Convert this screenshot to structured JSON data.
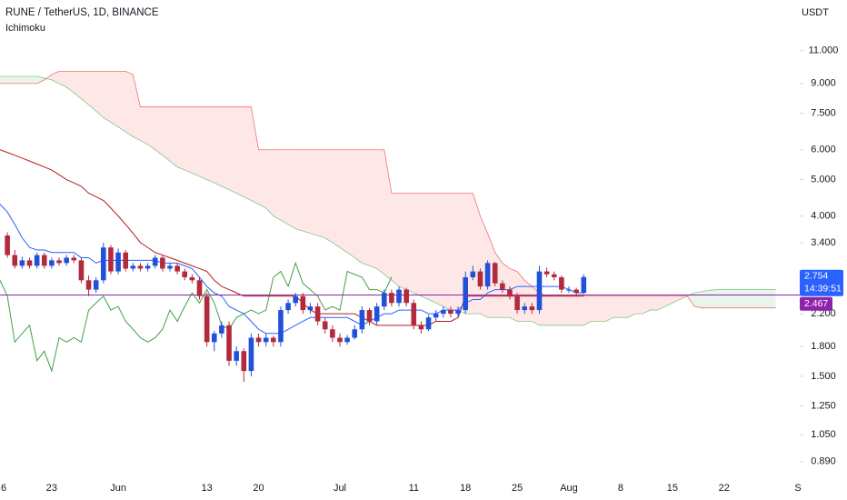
{
  "chart_data": {
    "type": "candlestick",
    "title": "RUNE / TetherUS, 1D, BINANCE",
    "indicator": "Ichimoku",
    "y_axis_label": "USDT",
    "log_scale": true,
    "grid": false,
    "ylim": [
      0.8,
      15
    ],
    "yticks": [
      {
        "value": 11,
        "label": "11.000"
      },
      {
        "value": 9,
        "label": "9.000"
      },
      {
        "value": 7.5,
        "label": "7.500"
      },
      {
        "value": 6,
        "label": "6.000"
      },
      {
        "value": 5,
        "label": "5.000"
      },
      {
        "value": 4,
        "label": "4.000"
      },
      {
        "value": 3.4,
        "label": "3.400"
      },
      {
        "value": 2.2,
        "label": "2.200"
      },
      {
        "value": 1.8,
        "label": "1.800"
      },
      {
        "value": 1.5,
        "label": "1.500"
      },
      {
        "value": 1.25,
        "label": "1.250"
      },
      {
        "value": 1.05,
        "label": "1.050"
      },
      {
        "value": 0.89,
        "label": "0.890"
      }
    ],
    "categories": [
      "6",
      null,
      null,
      null,
      null,
      null,
      null,
      "23",
      null,
      null,
      null,
      null,
      null,
      null,
      null,
      null,
      "Jun",
      null,
      null,
      null,
      null,
      null,
      null,
      null,
      null,
      null,
      null,
      null,
      "13",
      null,
      null,
      null,
      null,
      null,
      null,
      "20",
      null,
      null,
      null,
      null,
      null,
      null,
      null,
      null,
      null,
      null,
      "Jul",
      null,
      null,
      null,
      null,
      null,
      null,
      null,
      null,
      null,
      "11",
      null,
      null,
      null,
      null,
      null,
      null,
      "18",
      null,
      null,
      null,
      null,
      null,
      null,
      "25",
      null,
      null,
      null,
      null,
      null,
      null,
      "Aug",
      null,
      null,
      null,
      null,
      null,
      null,
      "8",
      null,
      null,
      null,
      null,
      null,
      null,
      "15",
      null,
      null,
      null,
      null,
      null,
      null,
      "22",
      null,
      null,
      null,
      null,
      null,
      null,
      null,
      null,
      null,
      "S"
    ],
    "open": [
      null,
      3.55,
      3.15,
      2.95,
      3.05,
      2.95,
      3.15,
      2.95,
      3.05,
      3.0,
      3.1,
      3.05,
      2.7,
      2.55,
      2.7,
      3.3,
      2.85,
      3.2,
      2.9,
      2.95,
      2.9,
      2.95,
      3.1,
      2.9,
      2.95,
      2.85,
      2.75,
      2.7,
      2.45,
      1.85,
      1.95,
      2.05,
      1.65,
      1.75,
      1.55,
      1.9,
      1.85,
      1.9,
      1.85,
      2.25,
      2.35,
      2.45,
      2.25,
      2.3,
      2.1,
      2.0,
      1.9,
      1.85,
      1.9,
      2.0,
      2.25,
      2.1,
      2.3,
      2.5,
      2.35,
      2.55,
      2.35,
      2.05,
      2.0,
      2.15,
      2.2,
      2.25,
      2.2,
      2.25,
      2.75,
      2.85,
      2.6,
      3.0,
      2.65,
      2.55,
      2.45,
      2.25,
      2.3,
      2.25,
      2.85,
      2.8,
      2.75,
      2.55,
      2.55,
      2.5,
      null,
      null,
      null,
      null,
      null,
      null,
      null,
      null,
      null,
      null,
      null,
      null,
      null,
      null,
      null,
      null,
      null,
      null,
      null,
      null,
      null,
      null,
      null,
      null,
      null,
      null,
      null,
      null,
      null
    ],
    "high": [
      null,
      3.62,
      3.25,
      3.12,
      3.1,
      3.2,
      3.2,
      3.1,
      3.1,
      3.15,
      3.15,
      3.1,
      2.78,
      2.75,
      3.4,
      3.35,
      3.28,
      3.25,
      3.0,
      3.0,
      3.0,
      3.15,
      3.15,
      3.0,
      3.0,
      2.9,
      2.8,
      2.75,
      2.5,
      1.98,
      2.1,
      2.1,
      1.8,
      1.78,
      1.95,
      1.95,
      1.95,
      1.92,
      2.3,
      2.4,
      2.5,
      2.5,
      2.35,
      2.35,
      2.15,
      2.05,
      1.95,
      1.93,
      2.05,
      2.3,
      2.28,
      2.35,
      2.55,
      2.55,
      2.6,
      2.58,
      2.4,
      2.1,
      2.18,
      2.25,
      2.3,
      2.3,
      2.3,
      2.85,
      2.95,
      2.9,
      3.05,
      3.02,
      2.7,
      2.6,
      2.5,
      2.35,
      2.35,
      2.95,
      2.92,
      2.85,
      2.78,
      2.6,
      2.58,
      2.8,
      null,
      null,
      null,
      null,
      null,
      null,
      null,
      null,
      null,
      null,
      null,
      null,
      null,
      null,
      null,
      null,
      null,
      null,
      null,
      null,
      null,
      null,
      null,
      null,
      null,
      null,
      null,
      null,
      null
    ],
    "low": [
      null,
      3.1,
      2.9,
      2.9,
      2.9,
      2.9,
      2.9,
      2.9,
      2.95,
      2.95,
      3.0,
      2.65,
      2.45,
      2.5,
      2.65,
      2.8,
      2.8,
      2.85,
      2.85,
      2.85,
      2.85,
      2.9,
      2.85,
      2.85,
      2.8,
      2.7,
      2.65,
      2.4,
      1.8,
      1.75,
      1.9,
      1.6,
      1.6,
      1.45,
      1.5,
      1.8,
      1.8,
      1.8,
      1.8,
      2.2,
      2.3,
      2.2,
      2.2,
      2.05,
      1.95,
      1.85,
      1.8,
      1.82,
      1.88,
      1.95,
      2.05,
      2.05,
      2.25,
      2.3,
      2.3,
      2.3,
      2.0,
      1.95,
      1.98,
      2.1,
      2.15,
      2.15,
      2.15,
      2.2,
      2.7,
      2.55,
      2.55,
      2.6,
      2.5,
      2.4,
      2.2,
      2.2,
      2.2,
      2.2,
      2.75,
      2.7,
      2.5,
      2.5,
      2.45,
      2.48,
      null,
      null,
      null,
      null,
      null,
      null,
      null,
      null,
      null,
      null,
      null,
      null,
      null,
      null,
      null,
      null,
      null,
      null,
      null,
      null,
      null,
      null,
      null,
      null,
      null,
      null,
      null,
      null,
      null
    ],
    "close": [
      null,
      3.15,
      2.95,
      3.05,
      2.95,
      3.15,
      2.95,
      3.05,
      3.0,
      3.1,
      3.05,
      2.7,
      2.55,
      2.7,
      3.3,
      2.85,
      3.2,
      2.9,
      2.95,
      2.9,
      2.95,
      3.1,
      2.9,
      2.95,
      2.85,
      2.75,
      2.7,
      2.45,
      1.85,
      1.95,
      2.05,
      1.65,
      1.75,
      1.55,
      1.9,
      1.85,
      1.9,
      1.85,
      2.25,
      2.35,
      2.45,
      2.25,
      2.3,
      2.1,
      2.0,
      1.9,
      1.85,
      1.9,
      2.0,
      2.25,
      2.1,
      2.3,
      2.5,
      2.35,
      2.55,
      2.35,
      2.05,
      2.0,
      2.15,
      2.2,
      2.25,
      2.2,
      2.25,
      2.75,
      2.85,
      2.6,
      3.0,
      2.65,
      2.55,
      2.45,
      2.25,
      2.3,
      2.25,
      2.85,
      2.8,
      2.75,
      2.55,
      2.55,
      2.5,
      2.754,
      null,
      null,
      null,
      null,
      null,
      null,
      null,
      null,
      null,
      null,
      null,
      null,
      null,
      null,
      null,
      null,
      null,
      null,
      null,
      null,
      null,
      null,
      null,
      null,
      null,
      null,
      null,
      null,
      null
    ],
    "up_color": "#2151d9",
    "down_color": "#b22a3c",
    "ichimoku": {
      "conversion_line": {
        "color": "#2962ff",
        "values": [
          4.3,
          4.1,
          3.8,
          3.5,
          3.3,
          3.25,
          3.25,
          3.2,
          3.2,
          3.2,
          3.2,
          3.1,
          3.1,
          3.0,
          3.05,
          3.05,
          3.05,
          3.05,
          3.05,
          3.05,
          3.05,
          3.05,
          3.0,
          3.0,
          3.0,
          2.95,
          2.9,
          2.75,
          2.6,
          2.5,
          2.45,
          2.3,
          2.25,
          2.2,
          2.1,
          2.0,
          1.95,
          1.95,
          1.95,
          2.0,
          2.05,
          2.1,
          2.15,
          2.15,
          2.15,
          2.15,
          2.15,
          2.15,
          2.1,
          2.05,
          2.1,
          2.15,
          2.2,
          2.2,
          2.25,
          2.25,
          2.25,
          2.25,
          2.2,
          2.2,
          2.25,
          2.25,
          2.25,
          2.35,
          2.4,
          2.4,
          2.5,
          2.55,
          2.55,
          2.55,
          2.6,
          2.6,
          2.6,
          2.6,
          2.6,
          2.6,
          2.6,
          2.55,
          2.5,
          2.5,
          null,
          null,
          null,
          null,
          null,
          null,
          null,
          null,
          null,
          null,
          null,
          null,
          null,
          null,
          null,
          null,
          null,
          null,
          null,
          null,
          null,
          null,
          null,
          null,
          null,
          null,
          null,
          null,
          null
        ]
      },
      "base_line": {
        "color": "#b71c1c",
        "values": [
          6.0,
          5.9,
          5.8,
          5.7,
          5.6,
          5.5,
          5.4,
          5.3,
          5.15,
          5.0,
          4.9,
          4.8,
          4.6,
          4.5,
          4.4,
          4.2,
          4.0,
          3.8,
          3.6,
          3.4,
          3.3,
          3.2,
          3.15,
          3.1,
          3.05,
          3.0,
          2.95,
          2.9,
          2.85,
          2.7,
          2.6,
          2.55,
          2.5,
          2.45,
          2.45,
          2.45,
          2.45,
          2.45,
          2.45,
          2.45,
          2.45,
          2.35,
          2.25,
          2.2,
          2.2,
          2.2,
          2.2,
          2.2,
          2.2,
          2.15,
          2.1,
          2.05,
          2.05,
          2.05,
          2.05,
          2.05,
          2.05,
          2.05,
          2.05,
          2.1,
          2.1,
          2.1,
          2.15,
          2.45,
          2.45,
          2.45,
          2.45,
          2.45,
          2.45,
          2.45,
          2.45,
          2.45,
          2.45,
          2.45,
          2.45,
          2.45,
          2.45,
          2.45,
          2.45,
          2.45,
          null,
          null,
          null,
          null,
          null,
          null,
          null,
          null,
          null,
          null,
          null,
          null,
          null,
          null,
          null,
          null,
          null,
          null,
          null,
          null,
          null,
          null,
          null,
          null,
          null,
          null,
          null,
          null,
          null
        ]
      },
      "lagging_span": {
        "color": "#43a047",
        "values": [
          2.7,
          2.45,
          1.85,
          1.95,
          2.05,
          1.65,
          1.75,
          1.55,
          1.9,
          1.85,
          1.9,
          1.85,
          2.25,
          2.35,
          2.45,
          2.25,
          2.3,
          2.1,
          2.0,
          1.9,
          1.85,
          1.9,
          2.0,
          2.25,
          2.1,
          2.3,
          2.5,
          2.35,
          2.55,
          2.35,
          2.05,
          2.0,
          2.15,
          2.2,
          2.25,
          2.2,
          2.25,
          2.75,
          2.85,
          2.6,
          3.0,
          2.65,
          2.55,
          2.45,
          2.25,
          2.3,
          2.25,
          2.85,
          2.8,
          2.75,
          2.55,
          2.55,
          2.5,
          2.754,
          null,
          null,
          null,
          null,
          null,
          null,
          null,
          null,
          null,
          null,
          null,
          null,
          null,
          null,
          null,
          null,
          null,
          null,
          null,
          null,
          null,
          null,
          null,
          null,
          null,
          null,
          null,
          null,
          null,
          null,
          null,
          null,
          null,
          null,
          null,
          null,
          null,
          null,
          null,
          null,
          null,
          null,
          null,
          null,
          null,
          null,
          null,
          null,
          null,
          null,
          null,
          null,
          null,
          null,
          null
        ]
      },
      "leading_span_a": {
        "color": "#66bb6a",
        "values": [
          9.4,
          9.4,
          9.4,
          9.4,
          9.4,
          9.4,
          9.3,
          9.2,
          9.0,
          8.8,
          8.5,
          8.2,
          7.9,
          7.6,
          7.3,
          7.1,
          6.9,
          6.7,
          6.5,
          6.35,
          6.2,
          6.0,
          5.8,
          5.6,
          5.4,
          5.3,
          5.2,
          5.1,
          5.0,
          4.9,
          4.8,
          4.7,
          4.6,
          4.5,
          4.4,
          4.3,
          4.2,
          4.0,
          3.9,
          3.8,
          3.7,
          3.65,
          3.6,
          3.55,
          3.5,
          3.4,
          3.3,
          3.2,
          3.1,
          3.0,
          2.95,
          2.9,
          2.8,
          2.7,
          2.6,
          2.55,
          2.5,
          2.45,
          2.4,
          2.35,
          2.3,
          2.25,
          2.25,
          2.2,
          2.2,
          2.2,
          2.15,
          2.15,
          2.15,
          2.15,
          2.1,
          2.1,
          2.1,
          2.05,
          2.05,
          2.05,
          2.05,
          2.05,
          2.05,
          2.05,
          2.1,
          2.1,
          2.1,
          2.15,
          2.15,
          2.15,
          2.2,
          2.2,
          2.25,
          2.25,
          2.3,
          2.35,
          2.4,
          2.45,
          2.5,
          2.52,
          2.54,
          2.55,
          2.55,
          2.55,
          2.55,
          2.55,
          2.55,
          2.55,
          2.55,
          2.55,
          null,
          null,
          null
        ]
      },
      "leading_span_b": {
        "color": "#ef5350",
        "values": [
          9.0,
          9.0,
          9.0,
          9.0,
          9.0,
          9.0,
          9.2,
          9.5,
          9.7,
          9.7,
          9.7,
          9.7,
          9.7,
          9.7,
          9.7,
          9.7,
          9.7,
          9.7,
          9.5,
          7.8,
          7.8,
          7.8,
          7.8,
          7.8,
          7.8,
          7.8,
          7.8,
          7.8,
          7.8,
          7.8,
          7.8,
          7.8,
          7.8,
          7.8,
          7.8,
          6.0,
          6.0,
          6.0,
          6.0,
          6.0,
          6.0,
          6.0,
          6.0,
          6.0,
          6.0,
          6.0,
          6.0,
          6.0,
          6.0,
          6.0,
          6.0,
          6.0,
          6.0,
          4.6,
          4.6,
          4.6,
          4.6,
          4.6,
          4.6,
          4.6,
          4.6,
          4.6,
          4.6,
          4.6,
          4.6,
          4.0,
          3.6,
          3.2,
          3.0,
          2.9,
          2.85,
          2.7,
          2.6,
          2.5,
          2.45,
          2.45,
          2.45,
          2.45,
          2.45,
          2.45,
          2.45,
          2.45,
          2.45,
          2.45,
          2.45,
          2.45,
          2.45,
          2.45,
          2.45,
          2.45,
          2.45,
          2.45,
          2.45,
          2.45,
          2.3,
          2.28,
          2.28,
          2.28,
          2.28,
          2.28,
          2.28,
          2.28,
          2.28,
          2.28,
          2.28,
          2.28,
          null,
          null,
          null
        ]
      },
      "cloud_up_color": "rgba(76,175,80,0.12)",
      "cloud_down_color": "rgba(244,67,54,0.12)"
    },
    "last_price": 2.754,
    "last_price_color": "#2962ff",
    "countdown": "14:39:51",
    "price_line": {
      "value": 2.467,
      "color": "#8e24aa"
    }
  }
}
